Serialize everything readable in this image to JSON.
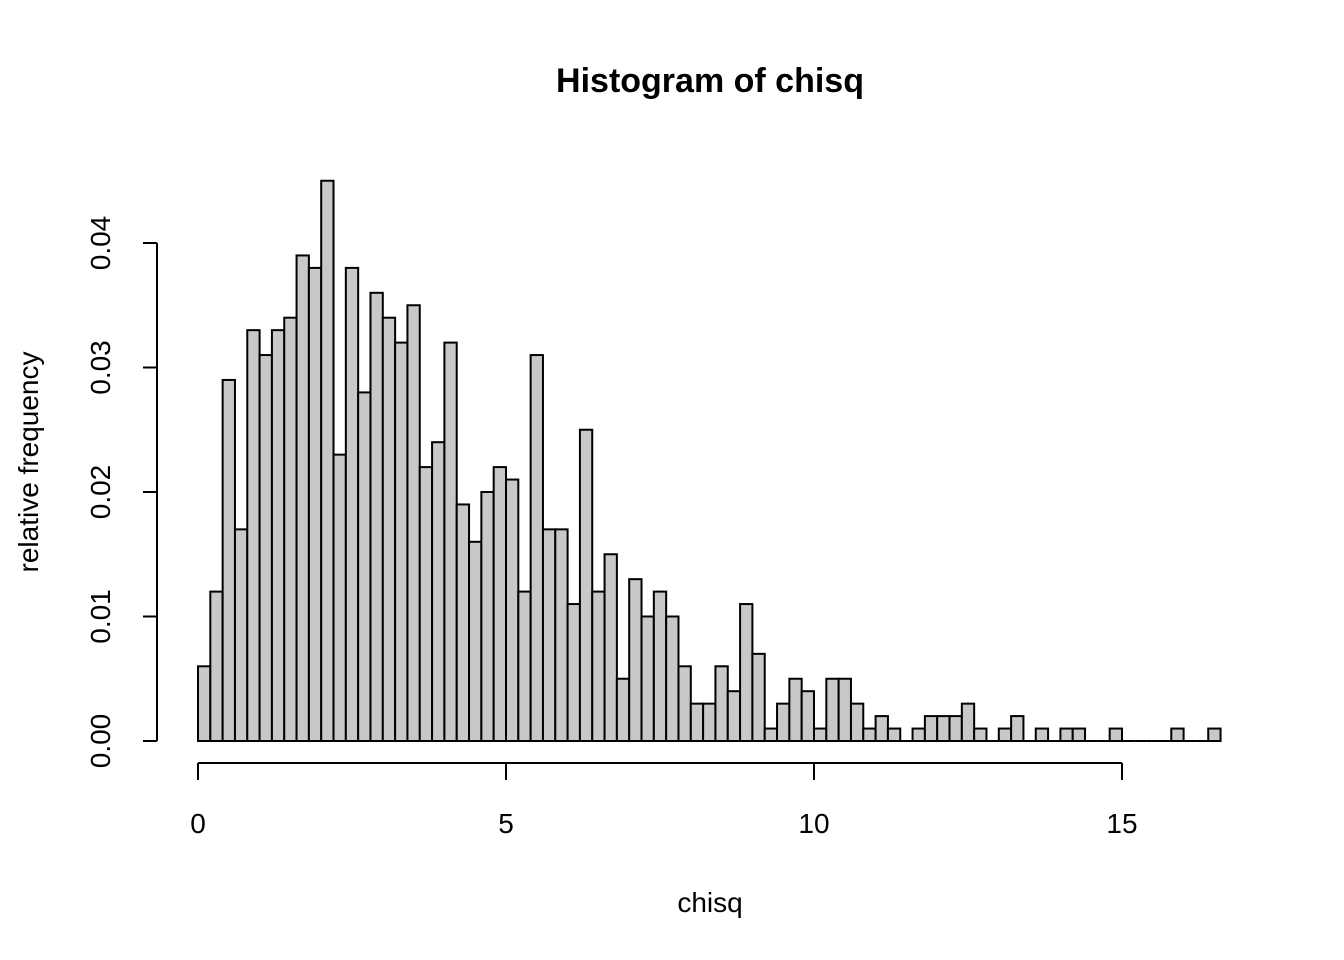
{
  "chart_data": {
    "type": "bar",
    "title": "Histogram of chisq",
    "xlabel": "chisq",
    "ylabel": "relative frequency",
    "bin_width": 0.2,
    "x_start": 0,
    "xlim": [
      0,
      16.6
    ],
    "ylim": [
      0,
      0.045
    ],
    "x_ticks": [
      0,
      5,
      10,
      15
    ],
    "x_tick_labels": [
      "0",
      "5",
      "10",
      "15"
    ],
    "y_ticks": [
      0,
      0.01,
      0.02,
      0.03,
      0.04
    ],
    "y_tick_labels": [
      "0.00",
      "0.01",
      "0.02",
      "0.03",
      "0.04"
    ],
    "bar_color": "#c8c8c8",
    "edge_color": "#000000",
    "grid": false,
    "values": [
      0.006,
      0.012,
      0.029,
      0.017,
      0.033,
      0.031,
      0.033,
      0.034,
      0.039,
      0.038,
      0.045,
      0.023,
      0.038,
      0.028,
      0.036,
      0.034,
      0.032,
      0.035,
      0.022,
      0.024,
      0.032,
      0.019,
      0.016,
      0.02,
      0.022,
      0.021,
      0.012,
      0.031,
      0.017,
      0.017,
      0.011,
      0.025,
      0.012,
      0.015,
      0.005,
      0.013,
      0.01,
      0.012,
      0.01,
      0.006,
      0.003,
      0.003,
      0.006,
      0.004,
      0.011,
      0.007,
      0.001,
      0.003,
      0.005,
      0.004,
      0.001,
      0.005,
      0.005,
      0.003,
      0.001,
      0.002,
      0.001,
      0.0,
      0.001,
      0.002,
      0.002,
      0.002,
      0.003,
      0.001,
      0.0,
      0.001,
      0.002,
      0.0,
      0.001,
      0.0,
      0.001,
      0.001,
      0.0,
      0.0,
      0.001,
      0.0,
      0.0,
      0.0,
      0.0,
      0.001,
      0.0,
      0.0,
      0.001
    ]
  }
}
